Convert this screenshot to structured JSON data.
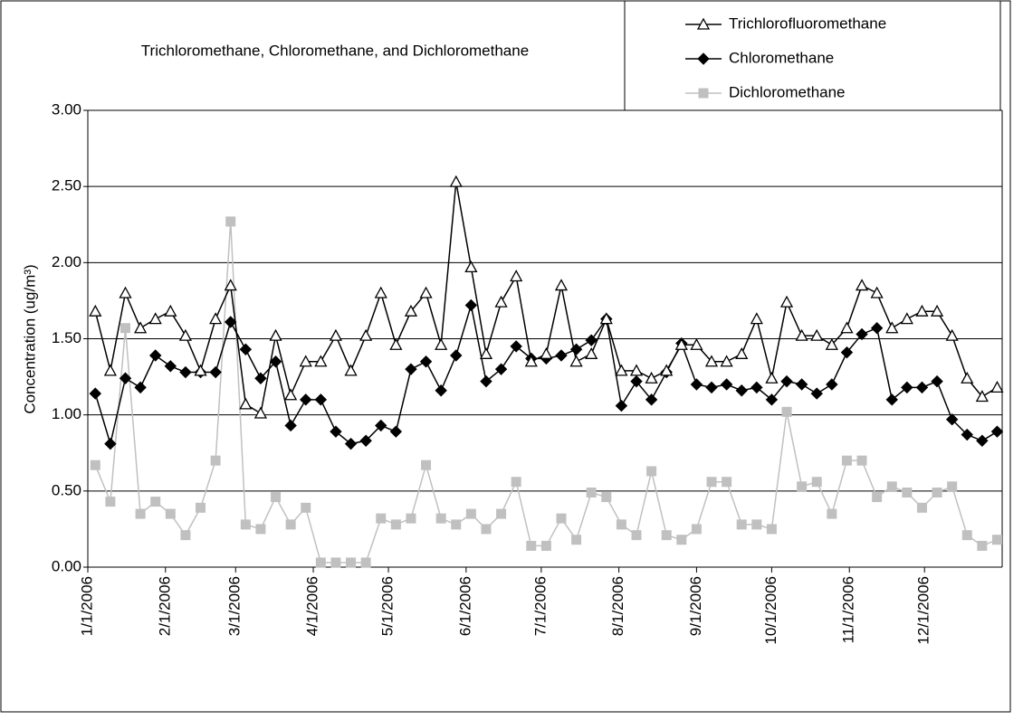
{
  "chart_data": {
    "type": "line",
    "title": "Trichloromethane, Chloromethane, and Dichloromethane",
    "y_label": "Concentration (ug/m³)",
    "x": [
      "1/4/2006",
      "1/10/2006",
      "1/16/2006",
      "1/22/2006",
      "1/28/2006",
      "2/3/2006",
      "2/9/2006",
      "2/15/2006",
      "2/21/2006",
      "2/27/2006",
      "3/5/2006",
      "3/11/2006",
      "3/17/2006",
      "3/23/2006",
      "3/29/2006",
      "4/4/2006",
      "4/10/2006",
      "4/16/2006",
      "4/22/2006",
      "4/28/2006",
      "5/4/2006",
      "5/10/2006",
      "5/16/2006",
      "5/22/2006",
      "5/28/2006",
      "6/3/2006",
      "6/9/2006",
      "6/15/2006",
      "6/21/2006",
      "6/27/2006",
      "7/3/2006",
      "7/9/2006",
      "7/15/2006",
      "7/21/2006",
      "7/27/2006",
      "8/2/2006",
      "8/8/2006",
      "8/14/2006",
      "8/20/2006",
      "8/26/2006",
      "9/1/2006",
      "9/7/2006",
      "9/13/2006",
      "9/19/2006",
      "9/25/2006",
      "10/1/2006",
      "10/7/2006",
      "10/13/2006",
      "10/19/2006",
      "10/25/2006",
      "10/31/2006",
      "11/6/2006",
      "11/12/2006",
      "11/18/2006",
      "11/24/2006",
      "11/30/2006",
      "12/6/2006",
      "12/12/2006",
      "12/18/2006",
      "12/24/2006",
      "12/30/2006"
    ],
    "series": [
      {
        "name": "Trichlorofluoromethane",
        "color": "#000000",
        "marker": "triangle",
        "values": [
          1.68,
          1.29,
          1.8,
          1.57,
          1.63,
          1.68,
          1.52,
          1.29,
          1.63,
          1.85,
          1.07,
          1.01,
          1.52,
          1.13,
          1.35,
          1.35,
          1.52,
          1.29,
          1.52,
          1.8,
          1.46,
          1.68,
          1.8,
          1.46,
          2.53,
          1.97,
          1.4,
          1.74,
          1.91,
          1.35,
          1.4,
          1.85,
          1.35,
          1.4,
          1.63,
          1.29,
          1.29,
          1.24,
          1.29,
          1.46,
          1.46,
          1.35,
          1.35,
          1.4,
          1.63,
          1.24,
          1.74,
          1.52,
          1.52,
          1.46,
          1.57,
          1.85,
          1.8,
          1.57,
          1.63,
          1.68,
          1.68,
          1.52,
          1.24,
          1.12,
          1.18
        ]
      },
      {
        "name": "Chloromethane",
        "color": "#000000",
        "marker": "diamond",
        "values": [
          1.14,
          0.81,
          1.24,
          1.18,
          1.39,
          1.32,
          1.28,
          1.28,
          1.28,
          1.61,
          1.43,
          1.24,
          1.35,
          0.93,
          1.1,
          1.1,
          0.89,
          0.81,
          0.83,
          0.93,
          0.89,
          1.3,
          1.35,
          1.16,
          1.39,
          1.72,
          1.22,
          1.3,
          1.45,
          1.37,
          1.37,
          1.39,
          1.43,
          1.49,
          1.63,
          1.06,
          1.22,
          1.1,
          1.28,
          1.47,
          1.2,
          1.18,
          1.2,
          1.16,
          1.18,
          1.1,
          1.22,
          1.2,
          1.14,
          1.2,
          1.41,
          1.53,
          1.57,
          1.1,
          1.18,
          1.18,
          1.22,
          0.97,
          0.87,
          0.83,
          0.89
        ]
      },
      {
        "name": "Dichloromethane",
        "color": "#c0c0c0",
        "marker": "square",
        "values": [
          0.67,
          0.43,
          1.57,
          0.35,
          0.43,
          0.35,
          0.21,
          0.39,
          0.7,
          2.27,
          0.28,
          0.25,
          0.46,
          0.28,
          0.39,
          0.03,
          0.03,
          0.03,
          0.03,
          0.32,
          0.28,
          0.32,
          0.67,
          0.32,
          0.28,
          0.35,
          0.25,
          0.35,
          0.56,
          0.14,
          0.14,
          0.32,
          0.18,
          0.49,
          0.46,
          0.28,
          0.21,
          0.63,
          0.21,
          0.18,
          0.25,
          0.56,
          0.56,
          0.28,
          0.28,
          0.25,
          1.02,
          0.53,
          0.56,
          0.35,
          0.7,
          0.7,
          0.46,
          0.53,
          0.49,
          0.39,
          0.49,
          0.53,
          0.21,
          0.14,
          0.18
        ]
      }
    ],
    "xlim": [
      "1/1/2006",
      "12/31/2006"
    ],
    "xticks": [
      "1/1/2006",
      "2/1/2006",
      "3/1/2006",
      "4/1/2006",
      "5/1/2006",
      "6/1/2006",
      "7/1/2006",
      "8/1/2006",
      "9/1/2006",
      "10/1/2006",
      "11/1/2006",
      "12/1/2006"
    ],
    "ylim": [
      0,
      3
    ],
    "yticks": [
      {
        "value": 0,
        "label": "0.00"
      },
      {
        "value": 0.5,
        "label": "0.50"
      },
      {
        "value": 1,
        "label": "1.00"
      },
      {
        "value": 1.5,
        "label": "1.50"
      },
      {
        "value": 2,
        "label": "2.00"
      },
      {
        "value": 2.5,
        "label": "2.50"
      },
      {
        "value": 3,
        "label": "3.00"
      }
    ],
    "grid": true,
    "legend": "top-right"
  }
}
